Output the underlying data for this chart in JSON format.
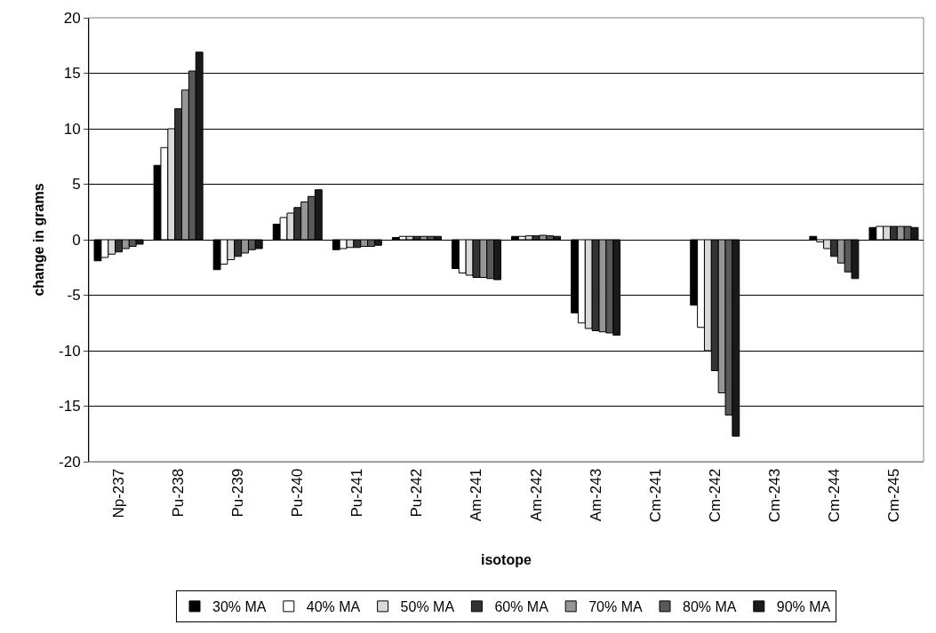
{
  "chart_data": {
    "type": "bar",
    "xlabel": "isotope",
    "ylabel": "change in grams",
    "categories": [
      "Np-237",
      "Pu-238",
      "Pu-239",
      "Pu-240",
      "Pu-241",
      "Pu-242",
      "Am-241",
      "Am-242",
      "Am-243",
      "Cm-241",
      "Cm-242",
      "Cm-243",
      "Cm-244",
      "Cm-245"
    ],
    "series": [
      {
        "name": "30% MA",
        "color": "#000000",
        "values": [
          -1.9,
          6.7,
          -2.7,
          1.4,
          -0.9,
          0.2,
          -2.6,
          0.3,
          -6.6,
          0,
          -5.9,
          0,
          0.3,
          1.1
        ]
      },
      {
        "name": "40% MA",
        "color": "#ffffff",
        "values": [
          -1.6,
          8.3,
          -2.2,
          2.0,
          -0.8,
          0.3,
          -3.0,
          0.3,
          -7.5,
          0,
          -7.9,
          0,
          -0.2,
          1.2
        ]
      },
      {
        "name": "50% MA",
        "color": "#d9d9d9",
        "values": [
          -1.3,
          10.0,
          -1.8,
          2.4,
          -0.7,
          0.3,
          -3.2,
          0.35,
          -8.0,
          0,
          -10.0,
          0,
          -0.8,
          1.2
        ]
      },
      {
        "name": "60% MA",
        "color": "#333333",
        "values": [
          -1.1,
          11.8,
          -1.5,
          2.9,
          -0.7,
          0.3,
          -3.4,
          0.35,
          -8.2,
          0,
          -11.8,
          0,
          -1.5,
          1.2
        ]
      },
      {
        "name": "70% MA",
        "color": "#969696",
        "values": [
          -0.8,
          13.5,
          -1.2,
          3.4,
          -0.6,
          0.3,
          -3.4,
          0.4,
          -8.3,
          0,
          -13.8,
          0,
          -2.1,
          1.2
        ]
      },
      {
        "name": "80% MA",
        "color": "#595959",
        "values": [
          -0.6,
          15.2,
          -0.9,
          3.9,
          -0.6,
          0.3,
          -3.5,
          0.35,
          -8.4,
          0,
          -15.8,
          0,
          -2.9,
          1.2
        ]
      },
      {
        "name": "90% MA",
        "color": "#1a1a1a",
        "values": [
          -0.4,
          16.9,
          -0.8,
          4.5,
          -0.5,
          0.3,
          -3.6,
          0.3,
          -8.6,
          0,
          -17.7,
          0,
          -3.5,
          1.1
        ]
      }
    ],
    "ylim": [
      -20,
      20
    ],
    "yticks": [
      -20,
      -15,
      -10,
      -5,
      0,
      5,
      10,
      15,
      20
    ],
    "grid": "y",
    "legend": "bottom"
  }
}
